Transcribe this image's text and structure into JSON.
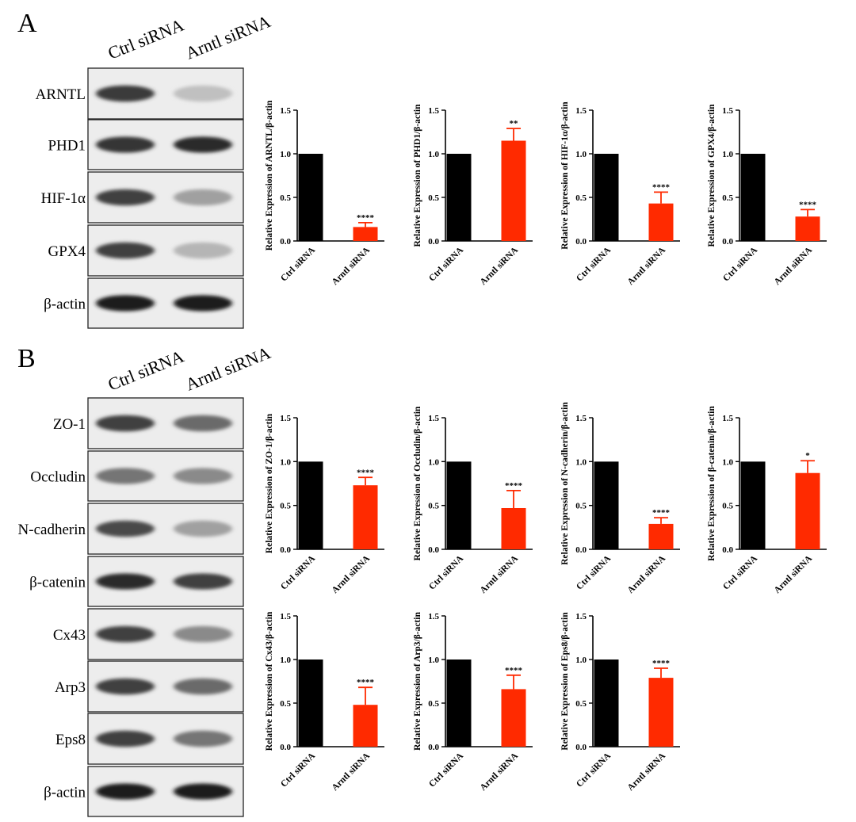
{
  "panels": [
    {
      "label": "A",
      "lanes": [
        "Ctrl siRNA",
        "Arntl siRNA"
      ],
      "blots": [
        {
          "name": "ARNTL",
          "band_intensity": [
            0.82,
            0.2
          ]
        },
        {
          "name": "PHD1",
          "band_intensity": [
            0.85,
            0.9
          ]
        },
        {
          "name": "HIF-1α",
          "band_intensity": [
            0.8,
            0.35
          ]
        },
        {
          "name": "GPX4",
          "band_intensity": [
            0.8,
            0.25
          ]
        },
        {
          "name": "β-actin",
          "band_intensity": [
            0.95,
            0.95
          ]
        }
      ]
    },
    {
      "label": "B",
      "lanes": [
        "Ctrl siRNA",
        "Arntl siRNA"
      ],
      "blots": [
        {
          "name": "ZO-1",
          "band_intensity": [
            0.8,
            0.6
          ]
        },
        {
          "name": "Occludin",
          "band_intensity": [
            0.55,
            0.45
          ]
        },
        {
          "name": "N-cadherin",
          "band_intensity": [
            0.75,
            0.35
          ]
        },
        {
          "name": "β-catenin",
          "band_intensity": [
            0.9,
            0.8
          ]
        },
        {
          "name": "Cx43",
          "band_intensity": [
            0.8,
            0.45
          ]
        },
        {
          "name": "Arp3",
          "band_intensity": [
            0.8,
            0.6
          ]
        },
        {
          "name": "Eps8",
          "band_intensity": [
            0.8,
            0.55
          ]
        },
        {
          "name": "β-actin",
          "band_intensity": [
            0.95,
            0.95
          ]
        }
      ]
    }
  ],
  "colors": {
    "ctrl": "#000000",
    "arntl": "#ff2a00"
  },
  "chart_data": [
    {
      "type": "bar",
      "categories": [
        "Ctrl siRNA",
        "Arntl siRNA"
      ],
      "values": [
        1.0,
        0.16
      ],
      "errors": [
        0,
        0.05
      ],
      "significance": "****",
      "ylabel": "Relative Expression of ARNTL/β-actin",
      "ylim": [
        0,
        1.5
      ],
      "yticks": [
        "0.0",
        "0.5",
        "1.0",
        "1.5"
      ]
    },
    {
      "type": "bar",
      "categories": [
        "Ctrl siRNA",
        "Arntl siRNA"
      ],
      "values": [
        1.0,
        1.15
      ],
      "errors": [
        0,
        0.14
      ],
      "significance": "**",
      "ylabel": "Relative Expression of PHD1/β-actin",
      "ylim": [
        0,
        1.5
      ],
      "yticks": [
        "0.0",
        "0.5",
        "1.0",
        "1.5"
      ]
    },
    {
      "type": "bar",
      "categories": [
        "Ctrl siRNA",
        "Arntl siRNA"
      ],
      "values": [
        1.0,
        0.43
      ],
      "errors": [
        0,
        0.13
      ],
      "significance": "****",
      "ylabel": "Relative Expression of HIF-1α/β-actin",
      "ylim": [
        0,
        1.5
      ],
      "yticks": [
        "0.0",
        "0.5",
        "1.0",
        "1.5"
      ]
    },
    {
      "type": "bar",
      "categories": [
        "Ctrl siRNA",
        "Arntl siRNA"
      ],
      "values": [
        1.0,
        0.28
      ],
      "errors": [
        0,
        0.08
      ],
      "significance": "****",
      "ylabel": "Relative Expression of GPX4/β-actin",
      "ylim": [
        0,
        1.5
      ],
      "yticks": [
        "0.0",
        "0.5",
        "1.0",
        "1.5"
      ]
    },
    {
      "type": "bar",
      "categories": [
        "Ctrl siRNA",
        "Arntl siRNA"
      ],
      "values": [
        1.0,
        0.73
      ],
      "errors": [
        0,
        0.09
      ],
      "significance": "****",
      "ylabel": "Relative Expression of ZO-1/β-actin",
      "ylim": [
        0,
        1.5
      ],
      "yticks": [
        "0.0",
        "0.5",
        "1.0",
        "1.5"
      ]
    },
    {
      "type": "bar",
      "categories": [
        "Ctrl siRNA",
        "Arntl siRNA"
      ],
      "values": [
        1.0,
        0.47
      ],
      "errors": [
        0,
        0.2
      ],
      "significance": "****",
      "ylabel": "Relative Expression of Occludin/β-actin",
      "ylim": [
        0,
        1.5
      ],
      "yticks": [
        "0.0",
        "0.5",
        "1.0",
        "1.5"
      ]
    },
    {
      "type": "bar",
      "categories": [
        "Ctrl siRNA",
        "Arntl siRNA"
      ],
      "values": [
        1.0,
        0.29
      ],
      "errors": [
        0,
        0.07
      ],
      "significance": "****",
      "ylabel": "Relative Expression of N-cadherin/β-actin",
      "ylim": [
        0,
        1.5
      ],
      "yticks": [
        "0.0",
        "0.5",
        "1.0",
        "1.5"
      ]
    },
    {
      "type": "bar",
      "categories": [
        "Ctrl siRNA",
        "Arntl siRNA"
      ],
      "values": [
        1.0,
        0.87
      ],
      "errors": [
        0,
        0.14
      ],
      "significance": "*",
      "ylabel": "Relative Expression of β-catenin/β-actin",
      "ylim": [
        0,
        1.5
      ],
      "yticks": [
        "0.0",
        "0.5",
        "1.0",
        "1.5"
      ]
    },
    {
      "type": "bar",
      "categories": [
        "Ctrl siRNA",
        "Arntl siRNA"
      ],
      "values": [
        1.0,
        0.48
      ],
      "errors": [
        0,
        0.2
      ],
      "significance": "****",
      "ylabel": "Relative Expression of Cx43/β-actin",
      "ylim": [
        0,
        1.5
      ],
      "yticks": [
        "0.0",
        "0.5",
        "1.0",
        "1.5"
      ]
    },
    {
      "type": "bar",
      "categories": [
        "Ctrl siRNA",
        "Arntl siRNA"
      ],
      "values": [
        1.0,
        0.66
      ],
      "errors": [
        0,
        0.16
      ],
      "significance": "****",
      "ylabel": "Relative Expression of Arp3/β-actin",
      "ylim": [
        0,
        1.5
      ],
      "yticks": [
        "0.0",
        "0.5",
        "1.0",
        "1.5"
      ]
    },
    {
      "type": "bar",
      "categories": [
        "Ctrl siRNA",
        "Arntl siRNA"
      ],
      "values": [
        1.0,
        0.79
      ],
      "errors": [
        0,
        0.11
      ],
      "significance": "****",
      "ylabel": "Relative Expression of Eps8/β-actin",
      "ylim": [
        0,
        1.5
      ],
      "yticks": [
        "0.0",
        "0.5",
        "1.0",
        "1.5"
      ]
    }
  ]
}
